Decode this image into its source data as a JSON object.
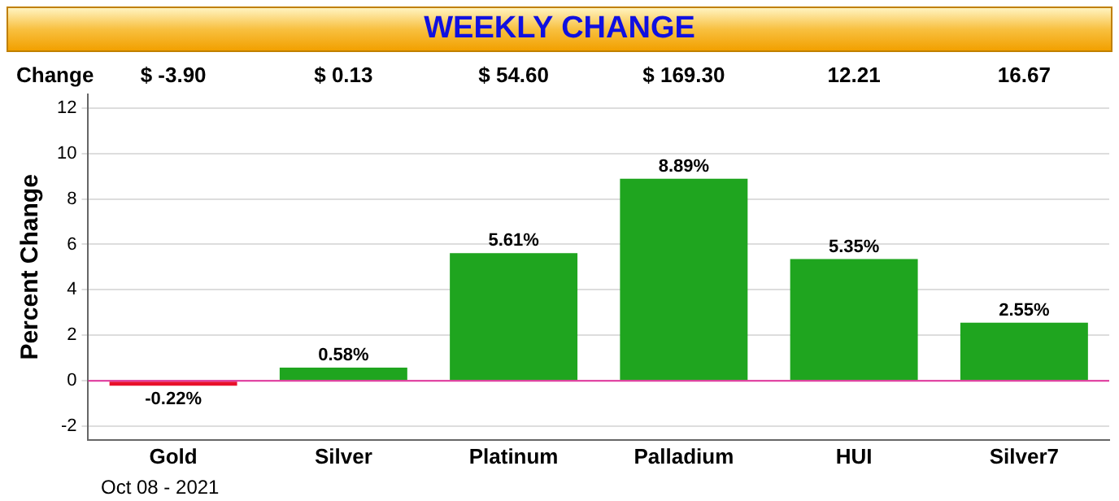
{
  "chart_data": {
    "type": "bar",
    "title": "WEEKLY CHANGE",
    "ylabel": "Percent Change",
    "categories": [
      "Gold",
      "Silver",
      "Platinum",
      "Palladium",
      "HUI",
      "Silver7"
    ],
    "values": [
      -0.22,
      0.58,
      5.61,
      8.89,
      5.35,
      2.55
    ],
    "colors": [
      "#e8102a",
      "#1fa51f",
      "#1fa51f",
      "#1fa51f",
      "#1fa51f",
      "#1fa51f"
    ],
    "value_labels": [
      "-0.22%",
      "0.58%",
      "5.61%",
      "8.89%",
      "5.35%",
      "2.55%"
    ],
    "ylim": [
      -2.6,
      12.6
    ],
    "yticks": [
      -2,
      0,
      2,
      4,
      6,
      8,
      10,
      12
    ],
    "grid": "y",
    "ref_lines": [
      {
        "axis": "y",
        "value": 0,
        "color": "#e0309a"
      }
    ],
    "annotations": [
      "Change",
      "$ -3.90",
      "$ 0.13",
      "$ 54.60",
      "$ 169.30",
      "12.21",
      "16.67",
      "Oct 08 - 2021"
    ]
  }
}
